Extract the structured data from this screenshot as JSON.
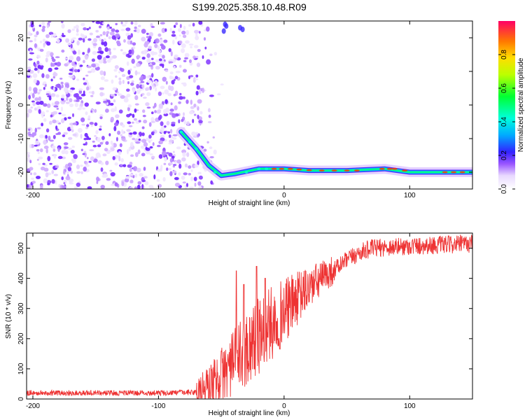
{
  "title": "S199.2025.358.10.48.R09",
  "chart_data": [
    {
      "type": "heatmap",
      "xlabel": "Height of straight line (km)",
      "ylabel": "Frequency (Hz)",
      "xlim": [
        -205,
        150
      ],
      "ylim": [
        -25,
        25
      ],
      "x_ticks": [
        -200,
        -100,
        0,
        100
      ],
      "y_ticks": [
        -20,
        -10,
        0,
        10,
        20
      ],
      "colorbar": {
        "label": "Normalized spectral amplitude",
        "range": [
          0,
          1
        ],
        "ticks": [
          0,
          0.2,
          0.4,
          0.6,
          0.8
        ],
        "tick_labels": [
          "0.0",
          "0.2",
          "0.4",
          "0.6",
          "0.8"
        ]
      },
      "features": {
        "noise_region_x": [
          -205,
          -60
        ],
        "signal_track": [
          {
            "x": -82,
            "y": -8
          },
          {
            "x": -70,
            "y": -13
          },
          {
            "x": -60,
            "y": -18
          },
          {
            "x": -50,
            "y": -21
          },
          {
            "x": -40,
            "y": -20.5
          },
          {
            "x": -20,
            "y": -19
          },
          {
            "x": 0,
            "y": -19
          },
          {
            "x": 20,
            "y": -19.5
          },
          {
            "x": 50,
            "y": -19.5
          },
          {
            "x": 80,
            "y": -19
          },
          {
            "x": 100,
            "y": -20
          },
          {
            "x": 150,
            "y": -20
          }
        ]
      }
    },
    {
      "type": "line",
      "xlabel": "Height of straight line (km)",
      "ylabel": "SNR (10 * v/v)",
      "xlim": [
        -205,
        150
      ],
      "ylim": [
        0,
        550
      ],
      "x_ticks": [
        -200,
        -100,
        0,
        100
      ],
      "y_ticks": [
        0,
        100,
        200,
        300,
        400,
        500
      ],
      "color": "#ee3333",
      "series_envelope": [
        {
          "x": -205,
          "y": 20
        },
        {
          "x": -150,
          "y": 20
        },
        {
          "x": -100,
          "y": 20
        },
        {
          "x": -70,
          "y": 22
        },
        {
          "x": -60,
          "y": 40
        },
        {
          "x": -50,
          "y": 80
        },
        {
          "x": -40,
          "y": 120
        },
        {
          "x": -30,
          "y": 170
        },
        {
          "x": -20,
          "y": 210
        },
        {
          "x": -10,
          "y": 250
        },
        {
          "x": 0,
          "y": 290
        },
        {
          "x": 10,
          "y": 330
        },
        {
          "x": 20,
          "y": 370
        },
        {
          "x": 30,
          "y": 400
        },
        {
          "x": 40,
          "y": 430
        },
        {
          "x": 50,
          "y": 460
        },
        {
          "x": 60,
          "y": 485
        },
        {
          "x": 70,
          "y": 500
        },
        {
          "x": 90,
          "y": 505
        },
        {
          "x": 120,
          "y": 510
        },
        {
          "x": 150,
          "y": 515
        }
      ],
      "spikes": [
        {
          "x": -38,
          "y": 425
        },
        {
          "x": -32,
          "y": 380
        },
        {
          "x": -22,
          "y": 440
        },
        {
          "x": -15,
          "y": 400
        }
      ]
    }
  ]
}
